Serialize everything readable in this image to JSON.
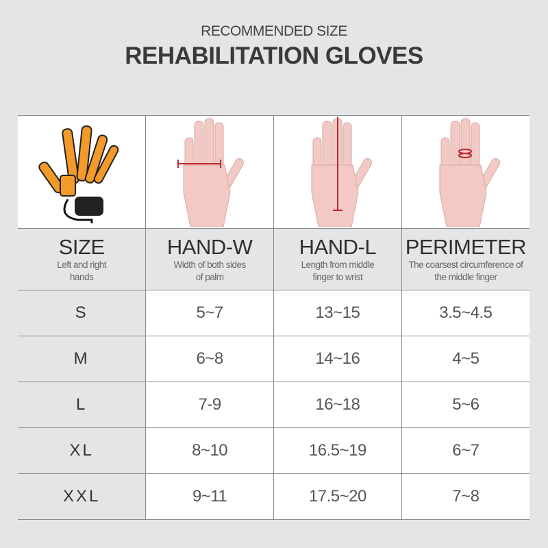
{
  "header": {
    "subtitle": "RECOMMENDED SIZE",
    "title": "REHABILITATION GLOVES"
  },
  "columns": [
    {
      "title": "SIZE",
      "desc": "Left and right hands",
      "image": "rehabilitation-glove"
    },
    {
      "title": "HAND-W",
      "desc": "Width of both sides of palm",
      "image": "hand-width-measure"
    },
    {
      "title": "HAND-L",
      "desc": "Length from middle finger to wrist",
      "image": "hand-length-measure"
    },
    {
      "title": "PERIMETER",
      "desc": "The coarsest circumference of the middle finger",
      "image": "finger-perimeter-measure"
    }
  ],
  "rows": [
    [
      "S",
      "5~7",
      "13~15",
      "3.5~4.5"
    ],
    [
      "M",
      "6~8",
      "14~16",
      "4~5"
    ],
    [
      "L",
      "7-9",
      "16~18",
      "5~6"
    ],
    [
      "XL",
      "8~10",
      "16.5~19",
      "6~7"
    ],
    [
      "XXL",
      "9~11",
      "17.5~20",
      "7~8"
    ]
  ],
  "colors": {
    "background": "#e6e5e6",
    "measure_line": "#c0272d",
    "glove_accent": "#f39a2a"
  }
}
